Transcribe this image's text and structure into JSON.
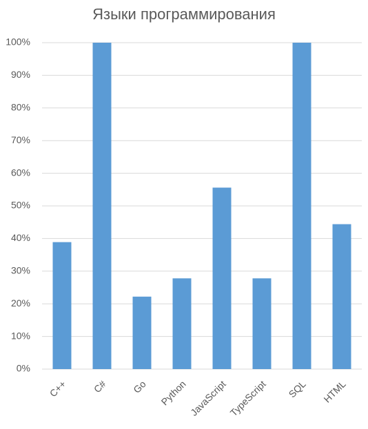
{
  "chart_data": {
    "type": "bar",
    "title": "Языки программирования",
    "categories": [
      "C++",
      "C#",
      "Go",
      "Python",
      "JavaScript",
      "TypeScript",
      "SQL",
      "HTML"
    ],
    "values": [
      38.9,
      100,
      22.2,
      27.8,
      55.6,
      27.8,
      100,
      44.4
    ],
    "color": "#5b9bd5",
    "ylim": [
      0,
      100
    ],
    "yticks": [
      {
        "value": 0,
        "label": "0%"
      },
      {
        "value": 10,
        "label": "10%"
      },
      {
        "value": 20,
        "label": "20%"
      },
      {
        "value": 30,
        "label": "30%"
      },
      {
        "value": 40,
        "label": "40%"
      },
      {
        "value": 50,
        "label": "50%"
      },
      {
        "value": 60,
        "label": "60%"
      },
      {
        "value": 70,
        "label": "70%"
      },
      {
        "value": 80,
        "label": "80%"
      },
      {
        "value": 90,
        "label": "90%"
      },
      {
        "value": 100,
        "label": "100%"
      }
    ],
    "grid": true
  }
}
